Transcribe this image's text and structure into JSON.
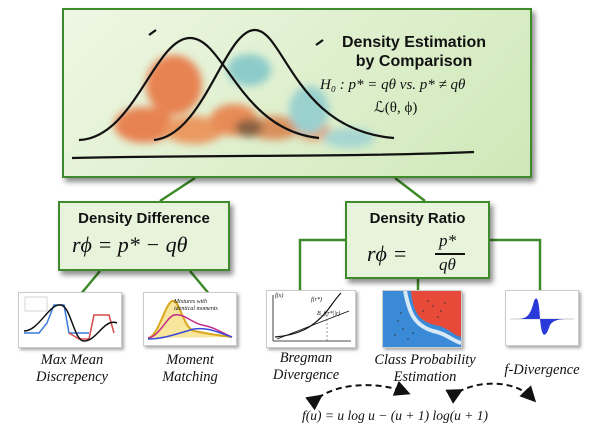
{
  "top": {
    "title_line1": "Density Estimation",
    "title_line2": "by Comparison",
    "hypothesis": "H₀ : p* = qθ  vs.  p* ≠ qθ",
    "loss": "ℒ(θ, ϕ)"
  },
  "difference": {
    "title": "Density Difference",
    "formula": "rϕ = p* − qθ"
  },
  "ratio": {
    "title": "Density Ratio",
    "formula_lhs": "rϕ =",
    "numerator": "p*",
    "denominator": "qθ"
  },
  "methods": [
    {
      "line1": "Max Mean",
      "line2": "Discrepency"
    },
    {
      "line1": "Moment",
      "line2": "Matching"
    },
    {
      "line1": "Bregman",
      "line2": "Divergence"
    },
    {
      "line1": "Class Probability",
      "line2": "Estimation"
    },
    {
      "line1": "f-Divergence",
      "line2": ""
    }
  ],
  "moment_caption_line1": "Mixtures with",
  "moment_caption_line2": "identical moments",
  "bregman_annotation": "B_f(r*||r)",
  "bregman_fr": "f(r*)",
  "bregman_fy": "f(x)",
  "footer_formula": "f(u) = u log u − (u + 1) log(u + 1)",
  "colors": {
    "accent_green": "#3f8a2a",
    "box_fill": "#e8f3dc",
    "orange": "#e8703a",
    "teal": "#7ec4c8"
  }
}
